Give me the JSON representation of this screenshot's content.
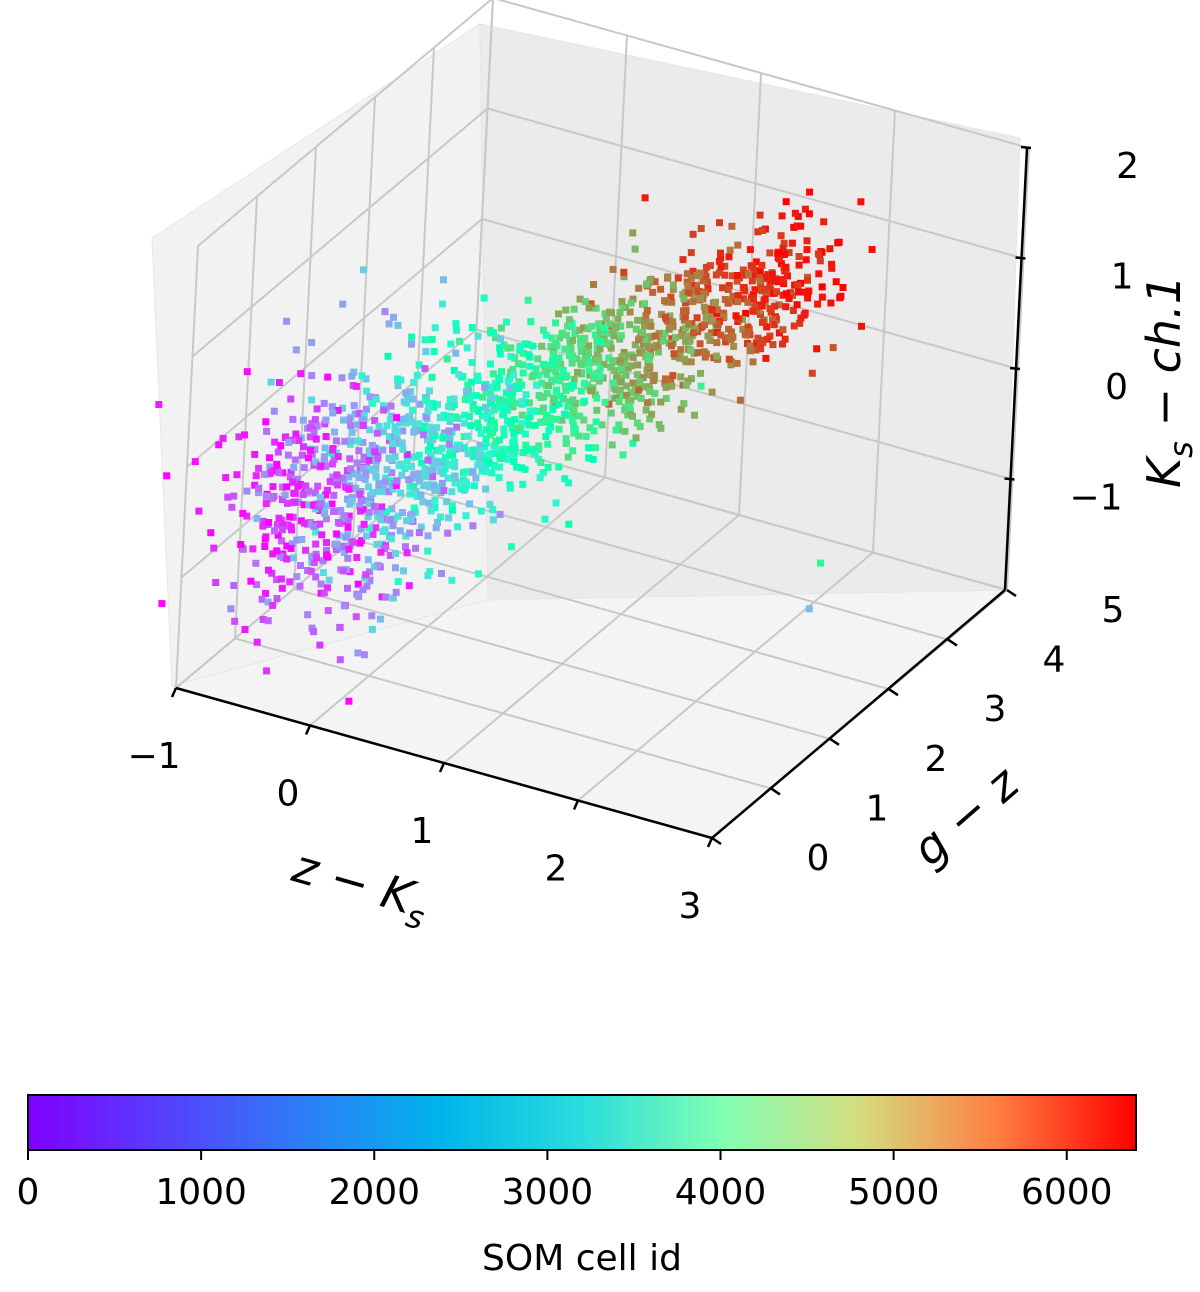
{
  "chart_data": {
    "type": "scatter",
    "projection": "3d",
    "title": "",
    "x_axis": {
      "label": "z − K_s",
      "label_main": "z − K",
      "label_sub": "s",
      "range": [
        -1,
        3
      ],
      "ticks": [
        -1,
        0,
        1,
        2,
        3
      ],
      "tick_labels": [
        "−1",
        "0",
        "1",
        "2",
        "3"
      ]
    },
    "y_axis": {
      "label": "g − z",
      "range": [
        0,
        5
      ],
      "ticks": [
        0,
        1,
        2,
        3,
        4,
        5
      ],
      "tick_labels": [
        "0",
        "1",
        "2",
        "3",
        "4",
        "5"
      ]
    },
    "z_axis": {
      "label": "K_s − ch.1",
      "label_main_a": "K",
      "label_sub": "s",
      "label_main_b": " − ch.1",
      "range": [
        -2,
        2
      ],
      "ticks": [
        -1,
        0,
        1,
        2
      ],
      "tick_labels": [
        "−1",
        "0",
        "1",
        "2"
      ]
    },
    "grid": true,
    "color_by": "SOM cell id",
    "colormap": "rainbow",
    "colorbar": {
      "label": "SOM cell id",
      "range": [
        0,
        6400
      ],
      "ticks": [
        0,
        1000,
        2000,
        3000,
        4000,
        5000,
        6000
      ],
      "tick_labels": [
        "0",
        "1000",
        "2000",
        "3000",
        "4000",
        "5000",
        "6000"
      ],
      "placement": "bottom"
    },
    "point_count_approx": 6400,
    "cluster_trend": [
      {
        "som_cell_id": 0,
        "x": -0.4,
        "y": 0.3,
        "z": -0.3
      },
      {
        "som_cell_id": 800,
        "x": -0.2,
        "y": 0.6,
        "z": -0.3
      },
      {
        "som_cell_id": 1600,
        "x": 0.0,
        "y": 1.0,
        "z": -0.2
      },
      {
        "som_cell_id": 2400,
        "x": 0.2,
        "y": 1.5,
        "z": -0.1
      },
      {
        "som_cell_id": 3200,
        "x": 0.4,
        "y": 2.0,
        "z": 0.0
      },
      {
        "som_cell_id": 4000,
        "x": 0.6,
        "y": 2.6,
        "z": 0.1
      },
      {
        "som_cell_id": 4800,
        "x": 0.9,
        "y": 3.2,
        "z": 0.2
      },
      {
        "som_cell_id": 5600,
        "x": 1.2,
        "y": 3.9,
        "z": 0.4
      },
      {
        "som_cell_id": 6400,
        "x": 1.5,
        "y": 4.6,
        "z": 0.6
      }
    ],
    "notable_points": [
      {
        "x": 0.9,
        "y": 3.3,
        "z": 1.6,
        "som_cell_id": 6200
      },
      {
        "x": -0.9,
        "y": 0.3,
        "z": 0.1,
        "som_cell_id": 100
      },
      {
        "x": 2.2,
        "y": 3.6,
        "z": -1.4,
        "som_cell_id": 3800
      },
      {
        "x": 2.3,
        "y": 3.2,
        "z": -1.6,
        "som_cell_id": 1700
      }
    ]
  }
}
